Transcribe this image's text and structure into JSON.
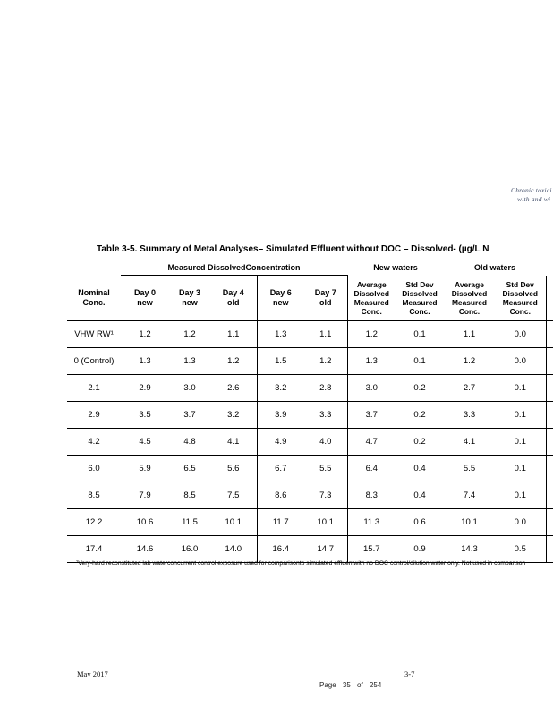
{
  "header_note": {
    "line1": "Chronic toxici",
    "line2": "with and wi",
    "color": "#44506b"
  },
  "table": {
    "title": "Table 3-5. Summary of Metal Analyses– Simulated Effluent without DOC – Dissolved- (µg/L N",
    "group_headers": {
      "measured": "Measured DissolvedConcentration",
      "new_waters": "New waters",
      "old_waters": "Old waters"
    },
    "headers": {
      "nominal": [
        "Nominal",
        "Conc."
      ],
      "days": [
        [
          "Day 0",
          "new"
        ],
        [
          "Day 3",
          "new"
        ],
        [
          "Day 4",
          "old"
        ],
        [
          "Day 6",
          "new"
        ],
        [
          "Day 7",
          "old"
        ]
      ],
      "stats": [
        [
          "Average",
          "Dissolved",
          "Measured",
          "Conc."
        ],
        [
          "Std Dev",
          "Dissolved",
          "Measured",
          "Conc."
        ],
        [
          "Average",
          "Dissolved",
          "Measured",
          "Conc."
        ],
        [
          "Std Dev",
          "Dissolved",
          "Measured",
          "Conc."
        ]
      ]
    },
    "rows": [
      {
        "label": "VHW RW¹",
        "values": [
          "1.2",
          "1.2",
          "1.1",
          "1.3",
          "1.1",
          "1.2",
          "0.1",
          "1.1",
          "0.0"
        ]
      },
      {
        "label": "0 (Control)",
        "values": [
          "1.3",
          "1.3",
          "1.2",
          "1.5",
          "1.2",
          "1.3",
          "0.1",
          "1.2",
          "0.0"
        ]
      },
      {
        "label": "2.1",
        "values": [
          "2.9",
          "3.0",
          "2.6",
          "3.2",
          "2.8",
          "3.0",
          "0.2",
          "2.7",
          "0.1"
        ]
      },
      {
        "label": "2.9",
        "values": [
          "3.5",
          "3.7",
          "3.2",
          "3.9",
          "3.3",
          "3.7",
          "0.2",
          "3.3",
          "0.1"
        ]
      },
      {
        "label": "4.2",
        "values": [
          "4.5",
          "4.8",
          "4.1",
          "4.9",
          "4.0",
          "4.7",
          "0.2",
          "4.1",
          "0.1"
        ]
      },
      {
        "label": "6.0",
        "values": [
          "5.9",
          "6.5",
          "5.6",
          "6.7",
          "5.5",
          "6.4",
          "0.4",
          "5.5",
          "0.1"
        ]
      },
      {
        "label": "8.5",
        "values": [
          "7.9",
          "8.5",
          "7.5",
          "8.6",
          "7.3",
          "8.3",
          "0.4",
          "7.4",
          "0.1"
        ]
      },
      {
        "label": "12.2",
        "values": [
          "10.6",
          "11.5",
          "10.1",
          "11.7",
          "10.1",
          "11.3",
          "0.6",
          "10.1",
          "0.0"
        ]
      },
      {
        "label": "17.4",
        "values": [
          "14.6",
          "16.0",
          "14.0",
          "16.4",
          "14.7",
          "15.7",
          "0.9",
          "14.3",
          "0.5"
        ]
      }
    ],
    "footnote": "¹Very-hard reconstituted lab waterconcurrent control exposure used for comparisonto simulated effluentwith no DOC control/dilution water only. Not used in comparison"
  },
  "footer": {
    "date": "May 2017",
    "section_page": "3-7",
    "page_indicator": "Page 35 of 254"
  }
}
